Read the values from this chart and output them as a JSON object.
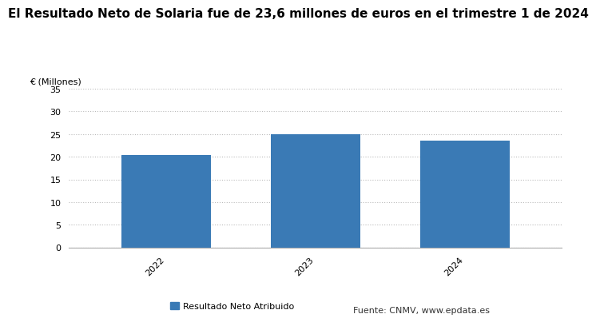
{
  "title": "El Resultado Neto de Solaria fue de 23,6 millones de euros en el trimestre 1 de 2024",
  "ylabel": "€ (Millones)",
  "categories": [
    "2022",
    "2023",
    "2024"
  ],
  "values": [
    20.4,
    24.9,
    23.6
  ],
  "bar_color": "#3a7ab5",
  "ylim": [
    0,
    35
  ],
  "yticks": [
    0,
    5,
    10,
    15,
    20,
    25,
    30,
    35
  ],
  "legend_label": "Resultado Neto Atribuido",
  "source_text": "Fuente: CNMV, www.epdata.es",
  "title_fontsize": 11,
  "label_fontsize": 8,
  "tick_fontsize": 8,
  "background_color": "#ffffff",
  "grid_color": "#bbbbbb"
}
